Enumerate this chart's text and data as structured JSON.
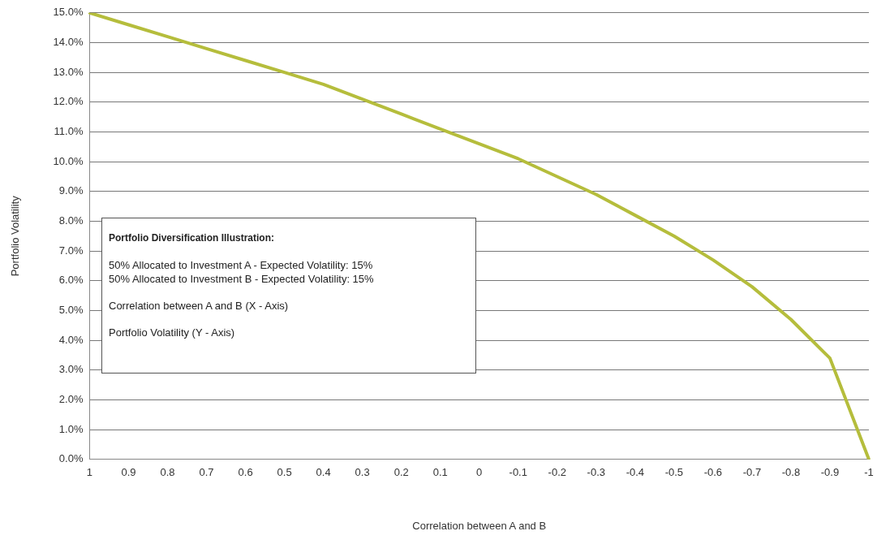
{
  "chart_data": {
    "type": "line",
    "xlabel": "Correlation between A and B",
    "ylabel": "Portfolio Volatility",
    "categories": [
      "1",
      "0.9",
      "0.8",
      "0.7",
      "0.6",
      "0.5",
      "0.4",
      "0.3",
      "0.2",
      "0.1",
      "0",
      "-0.1",
      "-0.2",
      "-0.3",
      "-0.4",
      "-0.5",
      "-0.6",
      "-0.7",
      "-0.8",
      "-0.9",
      "-1"
    ],
    "series": [
      {
        "color": "#b5bd3c",
        "values": [
          15.0,
          14.6,
          14.2,
          13.8,
          13.4,
          13.0,
          12.6,
          12.1,
          11.6,
          11.1,
          10.6,
          10.1,
          9.5,
          8.9,
          8.2,
          7.5,
          6.7,
          5.8,
          4.7,
          3.4,
          0.0
        ]
      }
    ],
    "ylim": [
      0,
      15
    ],
    "yticks": [
      {
        "value": 0,
        "label": "0.0%"
      },
      {
        "value": 1,
        "label": "1.0%"
      },
      {
        "value": 2,
        "label": "2.0%"
      },
      {
        "value": 3,
        "label": "3.0%"
      },
      {
        "value": 4,
        "label": "4.0%"
      },
      {
        "value": 5,
        "label": "5.0%"
      },
      {
        "value": 6,
        "label": "6.0%"
      },
      {
        "value": 7,
        "label": "7.0%"
      },
      {
        "value": 8,
        "label": "8.0%"
      },
      {
        "value": 9,
        "label": "9.0%"
      },
      {
        "value": 10,
        "label": "10.0%"
      },
      {
        "value": 11,
        "label": "11.0%"
      },
      {
        "value": 12,
        "label": "12.0%"
      },
      {
        "value": 13,
        "label": "13.0%"
      },
      {
        "value": 14,
        "label": "14.0%"
      },
      {
        "value": 15,
        "label": "15.0%"
      }
    ],
    "grid": "y",
    "legend": false,
    "marker": "none",
    "line_style": "solid",
    "annotations": [
      "Portfolio Diversification Illustration:",
      "50% Allocated to Investment A - Expected Volatility:  15%\n50% Allocated to Investment B - Expected Volatility:  15%",
      "Correlation between A and B (X - Axis)",
      "Portfolio Volatility (Y - Axis)"
    ]
  }
}
